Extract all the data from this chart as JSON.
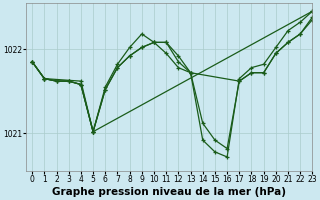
{
  "title": "Graphe pression niveau de la mer (hPa)",
  "background_color": "#cce8f0",
  "grid_color": "#aacccc",
  "line_color": "#1a5c1a",
  "ylim": [
    1020.55,
    1022.55
  ],
  "xlim": [
    -0.5,
    23
  ],
  "yticks": [
    1021,
    1022
  ],
  "xticks": [
    0,
    1,
    2,
    3,
    4,
    5,
    6,
    7,
    8,
    9,
    10,
    11,
    12,
    13,
    14,
    15,
    16,
    17,
    18,
    19,
    20,
    21,
    22,
    23
  ],
  "lines": [
    {
      "x": [
        0,
        1,
        2,
        3,
        4,
        5,
        6,
        7,
        8,
        9,
        10,
        11,
        12,
        13,
        14,
        15,
        16,
        17,
        18,
        19,
        20,
        21,
        22,
        23
      ],
      "y": [
        1021.85,
        1021.65,
        1021.62,
        1021.62,
        1021.58,
        1021.02,
        1021.52,
        1021.78,
        1021.92,
        1022.02,
        1022.08,
        1022.08,
        1021.92,
        1021.72,
        1021.12,
        1020.92,
        1020.82,
        1021.62,
        1021.72,
        1021.72,
        1021.95,
        1022.08,
        1022.18,
        1022.35
      ]
    },
    {
      "x": [
        0,
        1,
        4,
        5,
        6,
        7,
        8,
        9,
        10,
        11,
        12,
        13,
        17,
        18,
        19,
        20,
        21,
        22,
        23
      ],
      "y": [
        1021.85,
        1021.65,
        1021.62,
        1021.02,
        1021.55,
        1021.82,
        1022.02,
        1022.18,
        1022.08,
        1021.95,
        1021.78,
        1021.72,
        1021.62,
        1021.72,
        1021.72,
        1021.95,
        1022.08,
        1022.18,
        1022.38
      ]
    },
    {
      "x": [
        0,
        1,
        2,
        3,
        4,
        5,
        6,
        7,
        8,
        9,
        10,
        11,
        12,
        13,
        14,
        15,
        16,
        17,
        18,
        19,
        20,
        21,
        22,
        23
      ],
      "y": [
        1021.85,
        1021.65,
        1021.62,
        1021.62,
        1021.58,
        1021.02,
        1021.52,
        1021.78,
        1021.92,
        1022.02,
        1022.08,
        1022.08,
        1021.85,
        1021.72,
        1020.92,
        1020.78,
        1020.72,
        1021.65,
        1021.78,
        1021.82,
        1022.02,
        1022.22,
        1022.32,
        1022.45
      ]
    },
    {
      "x": [
        0,
        1,
        2,
        3,
        4,
        5,
        23
      ],
      "y": [
        1021.85,
        1021.65,
        1021.62,
        1021.62,
        1021.58,
        1021.02,
        1022.45
      ]
    }
  ],
  "title_fontsize": 7.5,
  "tick_fontsize": 5.5,
  "lw": 0.9,
  "markersize": 3.5
}
